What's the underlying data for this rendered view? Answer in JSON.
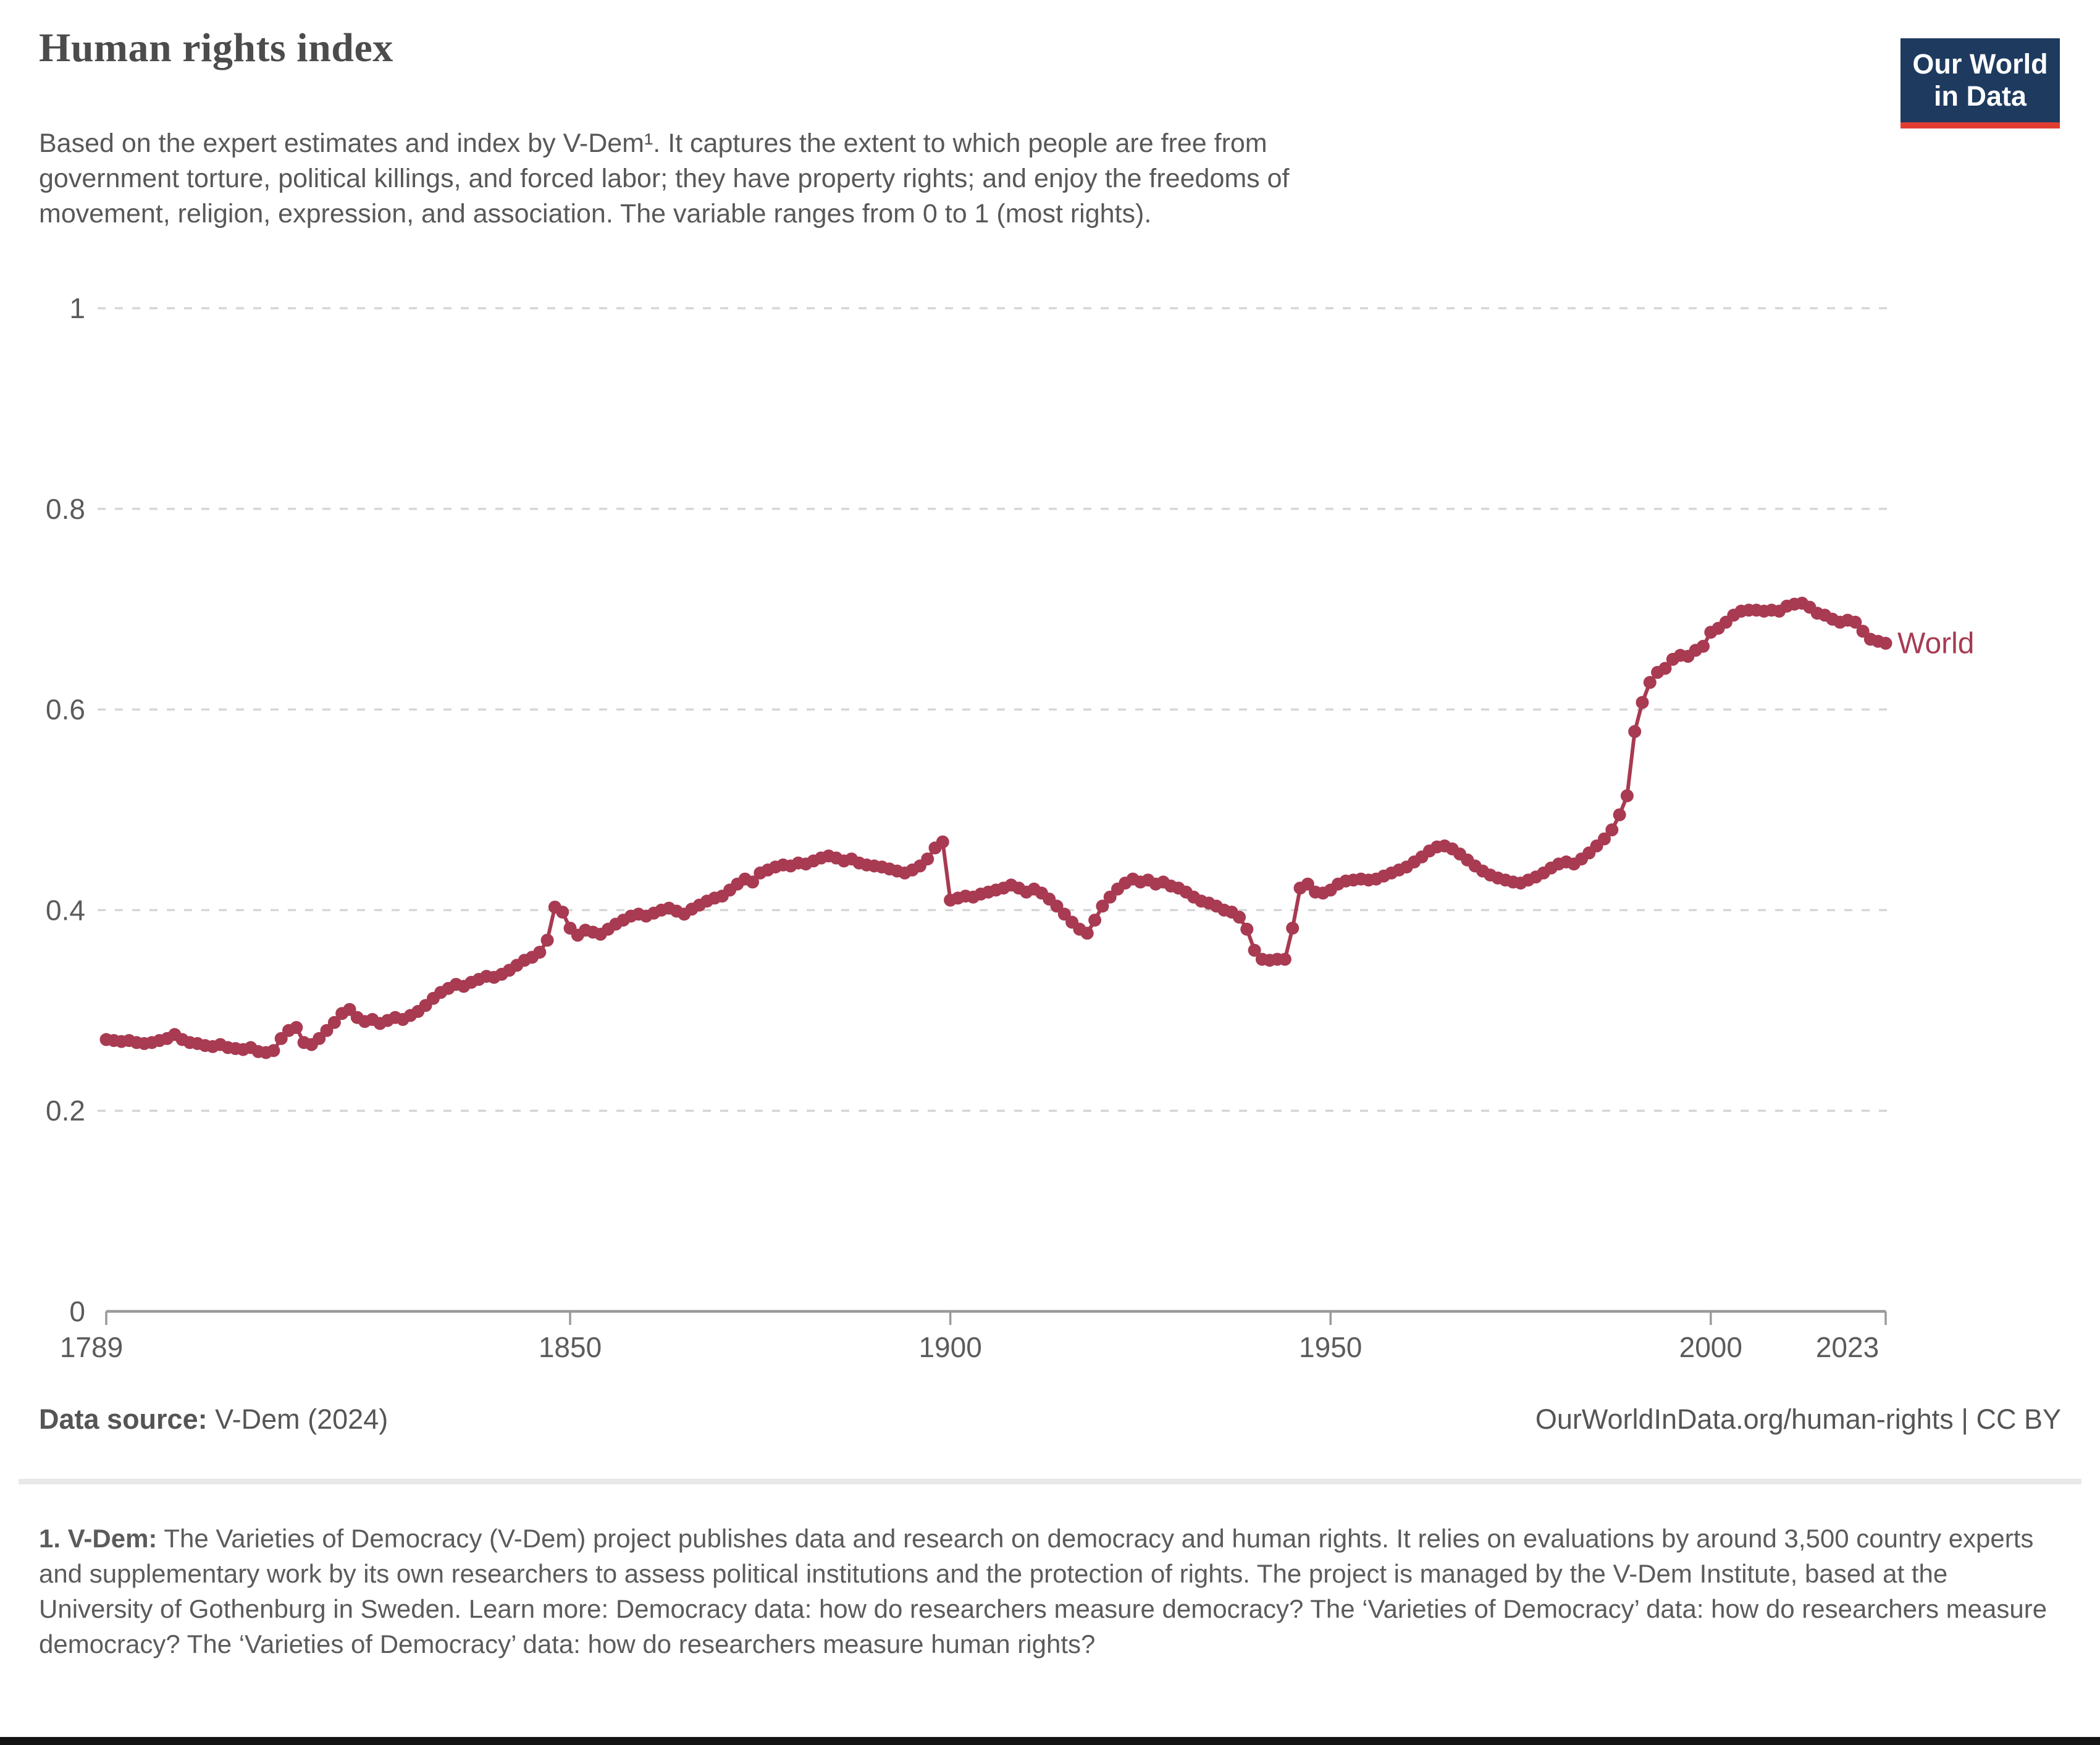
{
  "header": {
    "title": "Human rights index",
    "subtitle_lines": [
      "Based on the expert estimates and index by V-Dem¹. It captures the extent to which people are free from",
      "government torture, political killings, and forced labor; they have property rights; and enjoy the freedoms of",
      "movement, religion, expression, and association. The variable ranges from 0 to 1 (most rights)."
    ]
  },
  "logo": {
    "line1": "Our World",
    "line2": "in Data"
  },
  "chart_data": {
    "type": "line",
    "title": "Human rights index",
    "xlabel": "",
    "ylabel": "",
    "ylim": [
      0,
      1
    ],
    "xlim": [
      1789,
      2023
    ],
    "grid": true,
    "legend": "series label at right end of line",
    "series_label": "World",
    "line_color": "#a83a52",
    "x_start_year": 1789,
    "x_ticks": [
      {
        "year": 1789,
        "label": "1789",
        "dx": -24
      },
      {
        "year": 1850,
        "label": "1850",
        "dx": 0
      },
      {
        "year": 1900,
        "label": "1900",
        "dx": 0
      },
      {
        "year": 1950,
        "label": "1950",
        "dx": 0
      },
      {
        "year": 2000,
        "label": "2000",
        "dx": 0
      },
      {
        "year": 2023,
        "label": "2023",
        "dx": -62
      }
    ],
    "y_ticks": [
      {
        "value": 0,
        "label": "0"
      },
      {
        "value": 0.2,
        "label": "0.2"
      },
      {
        "value": 0.4,
        "label": "0.4"
      },
      {
        "value": 0.6,
        "label": "0.6"
      },
      {
        "value": 0.8,
        "label": "0.8"
      },
      {
        "value": 1,
        "label": "1"
      }
    ],
    "values": [
      0.271,
      0.27,
      0.269,
      0.27,
      0.268,
      0.267,
      0.268,
      0.27,
      0.272,
      0.276,
      0.271,
      0.268,
      0.267,
      0.265,
      0.264,
      0.266,
      0.263,
      0.262,
      0.261,
      0.263,
      0.259,
      0.258,
      0.26,
      0.272,
      0.28,
      0.283,
      0.268,
      0.266,
      0.272,
      0.28,
      0.288,
      0.297,
      0.301,
      0.293,
      0.289,
      0.291,
      0.287,
      0.29,
      0.293,
      0.291,
      0.295,
      0.299,
      0.305,
      0.312,
      0.318,
      0.322,
      0.326,
      0.324,
      0.328,
      0.331,
      0.334,
      0.333,
      0.336,
      0.34,
      0.345,
      0.35,
      0.353,
      0.358,
      0.37,
      0.403,
      0.398,
      0.382,
      0.375,
      0.38,
      0.378,
      0.376,
      0.381,
      0.386,
      0.39,
      0.394,
      0.396,
      0.394,
      0.397,
      0.4,
      0.402,
      0.399,
      0.396,
      0.401,
      0.405,
      0.409,
      0.412,
      0.414,
      0.42,
      0.426,
      0.431,
      0.428,
      0.437,
      0.44,
      0.443,
      0.445,
      0.444,
      0.447,
      0.446,
      0.449,
      0.452,
      0.454,
      0.452,
      0.449,
      0.451,
      0.447,
      0.445,
      0.444,
      0.443,
      0.441,
      0.439,
      0.437,
      0.44,
      0.444,
      0.451,
      0.462,
      0.468,
      0.41,
      0.412,
      0.414,
      0.413,
      0.416,
      0.418,
      0.42,
      0.422,
      0.425,
      0.422,
      0.418,
      0.421,
      0.417,
      0.411,
      0.404,
      0.396,
      0.388,
      0.381,
      0.377,
      0.39,
      0.404,
      0.413,
      0.421,
      0.427,
      0.431,
      0.428,
      0.43,
      0.426,
      0.428,
      0.424,
      0.422,
      0.418,
      0.413,
      0.409,
      0.407,
      0.404,
      0.4,
      0.398,
      0.393,
      0.381,
      0.36,
      0.351,
      0.35,
      0.351,
      0.351,
      0.382,
      0.422,
      0.426,
      0.418,
      0.417,
      0.42,
      0.426,
      0.429,
      0.43,
      0.431,
      0.43,
      0.431,
      0.434,
      0.437,
      0.44,
      0.443,
      0.448,
      0.453,
      0.459,
      0.463,
      0.464,
      0.461,
      0.456,
      0.45,
      0.444,
      0.439,
      0.435,
      0.432,
      0.43,
      0.428,
      0.427,
      0.43,
      0.433,
      0.437,
      0.442,
      0.446,
      0.448,
      0.446,
      0.451,
      0.457,
      0.464,
      0.471,
      0.48,
      0.495,
      0.514,
      0.578,
      0.607,
      0.627,
      0.637,
      0.641,
      0.65,
      0.654,
      0.653,
      0.659,
      0.663,
      0.677,
      0.681,
      0.687,
      0.694,
      0.698,
      0.699,
      0.699,
      0.698,
      0.699,
      0.698,
      0.703,
      0.705,
      0.706,
      0.702,
      0.696,
      0.694,
      0.69,
      0.687,
      0.689,
      0.687,
      0.678,
      0.67,
      0.668,
      0.666
    ]
  },
  "footer": {
    "source_label": "Data source:",
    "source_value": " V-Dem (2024)",
    "right_text": "OurWorldInData.org/human-rights | CC BY"
  },
  "note": {
    "label": "1. V-Dem:",
    "body": " The Varieties of Democracy (V-Dem) project publishes data and research on democracy and human rights. It relies on evaluations by around 3,500 country experts and supplementary work by its own researchers to assess political institutions and the protection of rights. The project is managed by the V-Dem Institute, based at the University of Gothenburg in Sweden. Learn more: Democracy data: how do researchers measure democracy? The ‘Varieties of Democracy’ data: how do researchers measure democracy? The ‘Varieties of Democracy’ data: how do researchers measure human rights?"
  }
}
